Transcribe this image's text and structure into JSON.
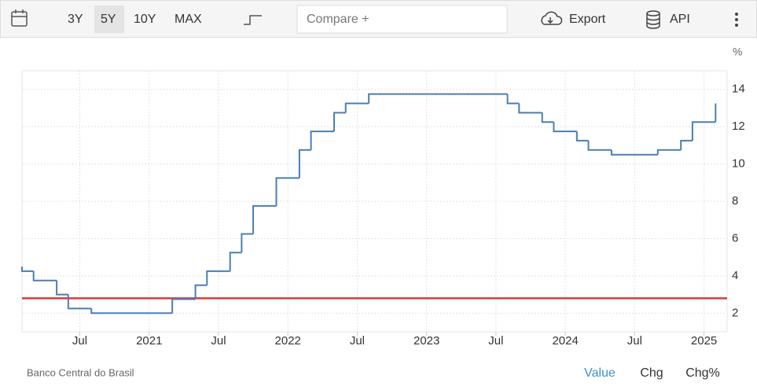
{
  "toolbar": {
    "ranges": [
      "3Y",
      "5Y",
      "10Y",
      "MAX"
    ],
    "selected_range": "5Y",
    "compare": "Compare +",
    "export": "Export",
    "api": "API"
  },
  "chart_data": {
    "type": "step",
    "y_unit": "%",
    "source": "Banco Central do Brasil",
    "x": [
      "2020-02",
      "2020-02",
      "2020-03",
      "2020-05",
      "2020-06",
      "2020-08",
      "2021-03",
      "2021-05",
      "2021-06",
      "2021-08",
      "2021-09",
      "2021-10",
      "2021-12",
      "2022-02",
      "2022-03",
      "2022-05",
      "2022-06",
      "2022-08",
      "2023-08",
      "2023-09",
      "2023-11",
      "2023-12",
      "2024-02",
      "2024-03",
      "2024-05",
      "2024-09",
      "2024-11",
      "2024-12",
      "2025-02"
    ],
    "series": [
      {
        "color": "#4a7eb5",
        "values": [
          4.5,
          4.25,
          3.75,
          3,
          2.25,
          2,
          2.75,
          3.5,
          4.25,
          5.25,
          6.25,
          7.75,
          9.25,
          10.75,
          11.75,
          12.75,
          13.25,
          13.75,
          13.25,
          12.75,
          12.25,
          11.75,
          11.25,
          10.75,
          10.5,
          10.75,
          11.25,
          12.25,
          13.25
        ]
      }
    ],
    "reference_line": {
      "value": 2.8,
      "color": "#d9393c"
    },
    "xlim": [
      "2020-02",
      "2025-03"
    ],
    "xticks": [
      {
        "value": "2020-07",
        "label": "Jul"
      },
      {
        "value": "2021-01",
        "label": "2021"
      },
      {
        "value": "2021-07",
        "label": "Jul"
      },
      {
        "value": "2022-01",
        "label": "2022"
      },
      {
        "value": "2022-07",
        "label": "Jul"
      },
      {
        "value": "2023-01",
        "label": "2023"
      },
      {
        "value": "2023-07",
        "label": "Jul"
      },
      {
        "value": "2024-01",
        "label": "2024"
      },
      {
        "value": "2024-07",
        "label": "Jul"
      },
      {
        "value": "2025-01",
        "label": "2025"
      }
    ],
    "ylim": [
      1,
      15
    ],
    "yticks": [
      2,
      4,
      6,
      8,
      10,
      12,
      14
    ],
    "grid": true
  },
  "footer": {
    "tabs": [
      "Value",
      "Chg",
      "Chg%"
    ],
    "active_tab": "Value"
  }
}
